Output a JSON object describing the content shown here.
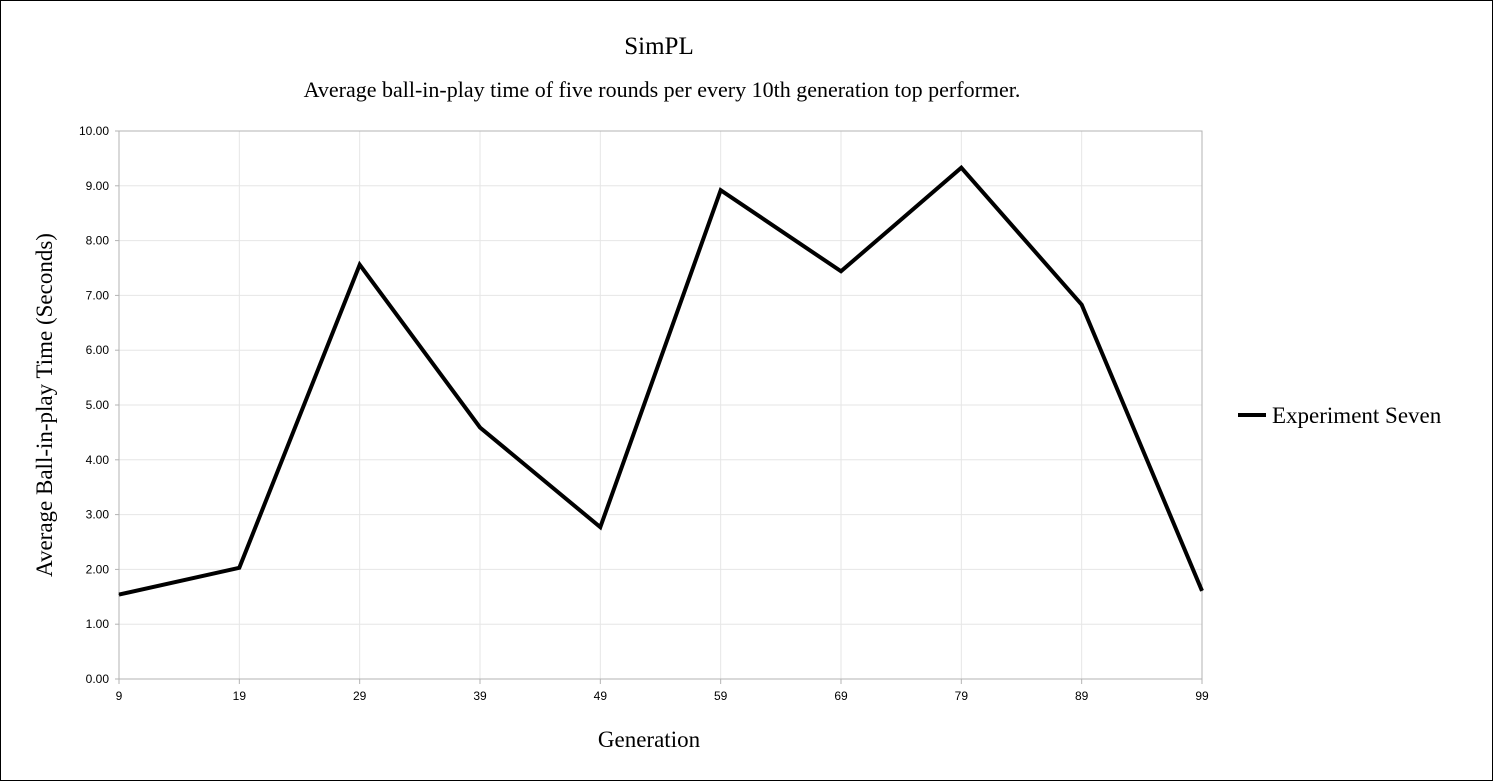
{
  "chart_data": {
    "type": "line",
    "title": "SimPL",
    "subtitle": "Average ball-in-play time of five rounds per every 10th generation top performer.",
    "xlabel": "Generation",
    "ylabel": "Average Ball-in-play Time (Seconds)",
    "x": [
      9,
      19,
      29,
      39,
      49,
      59,
      69,
      79,
      89,
      99
    ],
    "x_tick_labels": [
      "9",
      "19",
      "29",
      "39",
      "49",
      "59",
      "69",
      "79",
      "89",
      "99"
    ],
    "ylim": [
      0,
      10
    ],
    "y_ticks": [
      0,
      1,
      2,
      3,
      4,
      5,
      6,
      7,
      8,
      9,
      10
    ],
    "y_tick_labels": [
      "0.00",
      "1.00",
      "2.00",
      "3.00",
      "4.00",
      "5.00",
      "6.00",
      "7.00",
      "8.00",
      "9.00",
      "10.00"
    ],
    "grid": true,
    "legend_position": "right",
    "series": [
      {
        "name": "Experiment Seven",
        "color": "#000000",
        "values": [
          1.54,
          2.03,
          7.56,
          4.59,
          2.77,
          8.92,
          7.44,
          9.33,
          6.83,
          1.61
        ]
      }
    ]
  }
}
